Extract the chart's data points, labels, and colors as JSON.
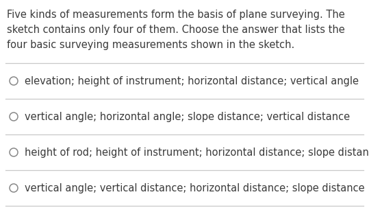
{
  "background_color": "#ffffff",
  "text_color": "#3a3a3a",
  "prompt_lines": [
    "Five kinds of measurements form the basis of plane surveying. The",
    "sketch contains only four of them. Choose the answer that lists the",
    "four basic surveying measurements shown in the sketch."
  ],
  "options": [
    "elevation; height of instrument; horizontal distance; vertical angle",
    "vertical angle; horizontal angle; slope distance; vertical distance",
    "height of rod; height of instrument; horizontal distance; slope distance",
    "vertical angle; vertical distance; horizontal distance; slope distance"
  ],
  "divider_color": "#c8c8c8",
  "circle_color": "#888888",
  "prompt_fontsize": 10.5,
  "option_fontsize": 10.5,
  "fig_width": 5.39,
  "fig_height": 3.09,
  "dpi": 100
}
